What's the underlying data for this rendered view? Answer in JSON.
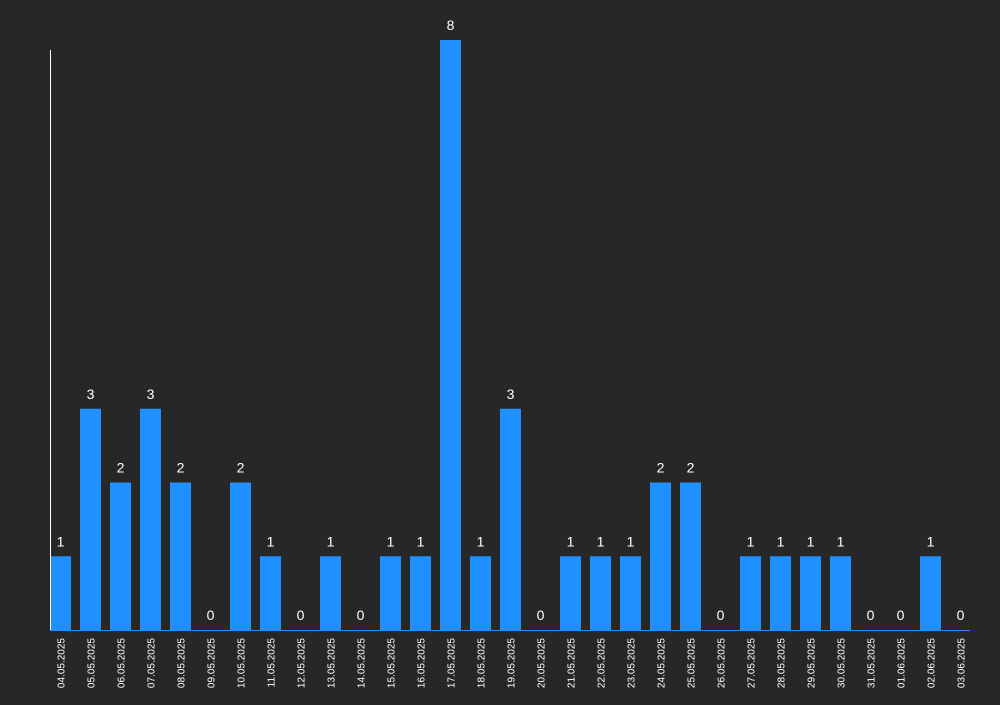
{
  "chart_data": {
    "type": "bar",
    "title": "",
    "xlabel": "",
    "ylabel": "",
    "ylim": [
      0,
      8
    ],
    "grid": false,
    "legend": "none",
    "colors": {
      "background": "#272727",
      "bar": "#1e90ff",
      "axis": "#ffffff",
      "text": "#ffffff"
    },
    "categories": [
      "04.05.2025",
      "05.05.2025",
      "06.05.2025",
      "07.05.2025",
      "08.05.2025",
      "09.05.2025",
      "10.05.2025",
      "11.05.2025",
      "12.05.2025",
      "13.05.2025",
      "14.05.2025",
      "15.05.2025",
      "16.05.2025",
      "17.05.2025",
      "18.05.2025",
      "19.05.2025",
      "20.05.2025",
      "21.05.2025",
      "22.05.2025",
      "23.05.2025",
      "24.05.2025",
      "25.05.2025",
      "26.05.2025",
      "27.05.2025",
      "28.05.2025",
      "29.05.2025",
      "30.05.2025",
      "31.05.2025",
      "01.06.2025",
      "02.06.2025",
      "03.06.2025"
    ],
    "values": [
      1,
      3,
      2,
      3,
      2,
      0,
      2,
      1,
      0,
      1,
      0,
      1,
      1,
      8,
      1,
      3,
      0,
      1,
      1,
      1,
      2,
      2,
      0,
      1,
      1,
      1,
      1,
      0,
      0,
      1,
      0
    ]
  }
}
